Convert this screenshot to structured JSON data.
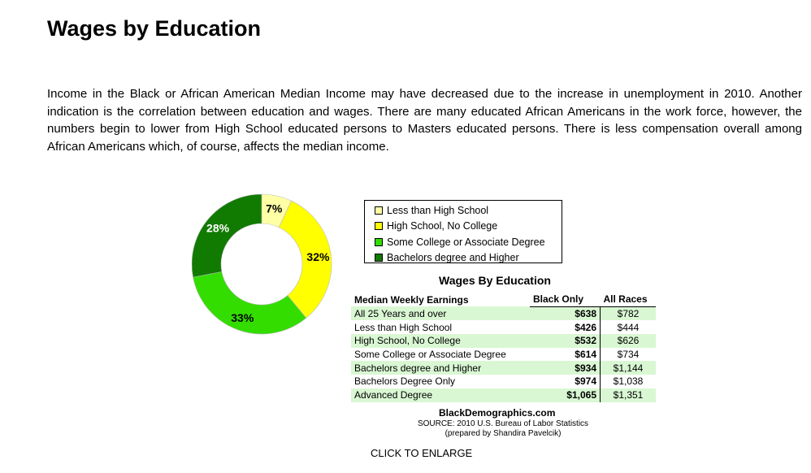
{
  "page": {
    "title": "Wages by Education",
    "intro": "Income in the Black or African American Median Income may have decreased due to the increase in unemployment in 2010.  Another indication is the correlation between education and wages.  There are many educated African Americans in the work force, however, the numbers begin to lower from High School educated persons to Masters educated persons. There is less compensation overall among African Americans which, of course, affects the median income.",
    "click_to_enlarge": "CLICK TO ENLARGE"
  },
  "chart_data": [
    {
      "type": "pie",
      "labels": [
        "Less than High School",
        "High School, No College",
        "Some College or Associate Degree",
        "Bachelors degree and Higher"
      ],
      "values": [
        7,
        32,
        33,
        28
      ],
      "value_labels": [
        "7%",
        "32%",
        "33%",
        "28%"
      ],
      "colors": [
        "#ffffa6",
        "#ffff00",
        "#33dd00",
        "#117a00"
      ],
      "label_colors": [
        "#000000",
        "#000000",
        "#000000",
        "#ffffff"
      ],
      "legend_position": "right"
    },
    {
      "type": "table",
      "title": "Wages By Education",
      "columns": [
        "Median Weekly Earnings",
        "Black Only",
        "All Races"
      ],
      "rows": [
        [
          "All 25 Years and over",
          "$638",
          "$782"
        ],
        [
          "Less than High School",
          "$426",
          "$444"
        ],
        [
          "High School, No College",
          "$532",
          "$626"
        ],
        [
          "Some College or Associate Degree",
          "$614",
          "$734"
        ],
        [
          "Bachelors degree and Higher",
          "$934",
          "$1,144"
        ],
        [
          "Bachelors Degree Only",
          "$974",
          "$1,038"
        ],
        [
          "Advanced Degree",
          "$1,065",
          "$1,351"
        ]
      ],
      "shaded_rows": [
        true,
        false,
        true,
        false,
        true,
        false,
        true
      ],
      "shade_color": "#d9f7d3",
      "footer": {
        "site": "BlackDemographics.com",
        "source": "SOURCE: 2010 U.S. Bureau of Labor Statistics",
        "prepared_by": "(prepared by Shandira Pavelcik)"
      }
    }
  ]
}
